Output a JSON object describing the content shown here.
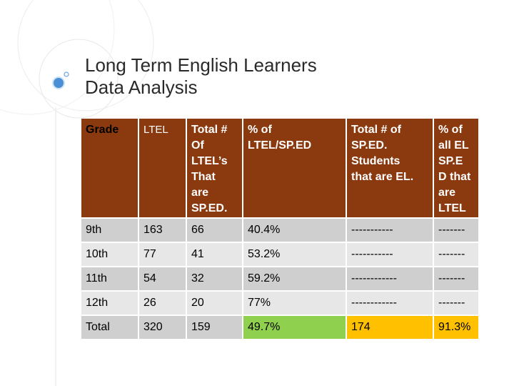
{
  "title": {
    "line1": "Long Term English Learners",
    "line2": "Data Analysis"
  },
  "table": {
    "headers": [
      [
        "Grade"
      ],
      [
        "LTEL"
      ],
      [
        "Total  #",
        "Of",
        "LTEL’s",
        "That",
        "are",
        "SP.ED."
      ],
      [
        "% of",
        "LTEL/SP.ED"
      ],
      [
        "Total # of",
        "SP.ED.",
        "Students",
        "that are EL."
      ],
      [
        "% of",
        "all EL",
        "SP.E",
        "D that",
        "are",
        "LTEL"
      ]
    ],
    "rows": [
      [
        "9th",
        "163",
        "66",
        "40.4%",
        "-----------",
        "-------"
      ],
      [
        "10th",
        "77",
        "41",
        "53.2%",
        "-----------",
        "-------"
      ],
      [
        "11th",
        "54",
        "32",
        "59.2%",
        "------------",
        "-------"
      ],
      [
        "12th",
        "26",
        "20",
        "77%",
        "------------",
        "-------"
      ]
    ],
    "total": [
      "Total",
      "320",
      "159",
      "49.7%",
      "174",
      "91.3%"
    ]
  },
  "colors": {
    "header_bg": "#8b3a0f",
    "row_dark": "#cfcfcf",
    "row_light": "#e7e7e7",
    "highlight_green": "#8fd14f",
    "highlight_orange": "#ffc000"
  }
}
